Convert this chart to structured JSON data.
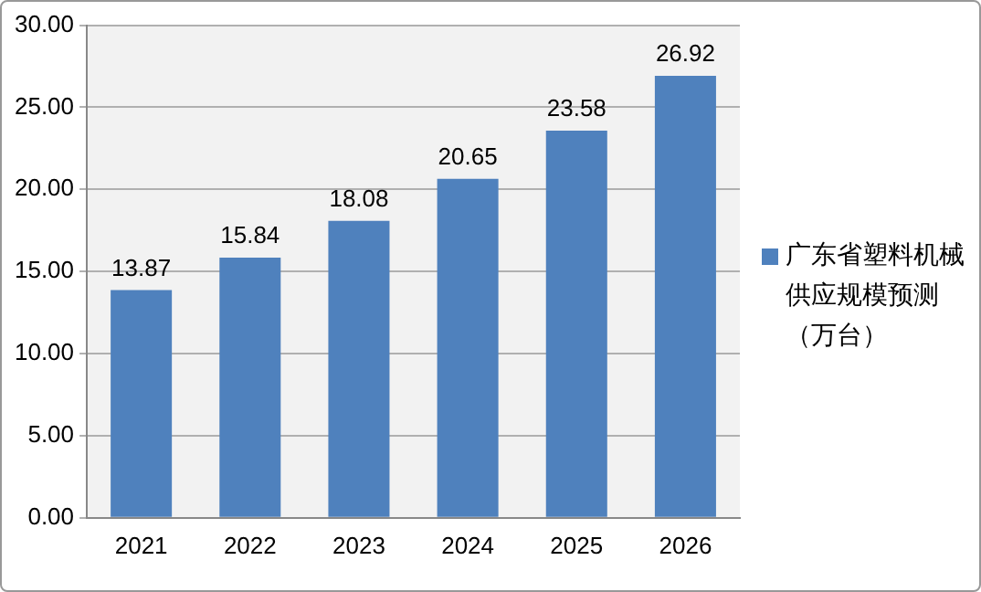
{
  "chart_data": {
    "type": "bar",
    "categories": [
      "2021",
      "2022",
      "2023",
      "2024",
      "2025",
      "2026"
    ],
    "series": [
      {
        "name": "广东省塑料机械供应规模预测（万台）",
        "color": "#4f81bd",
        "values": [
          13.87,
          15.84,
          18.08,
          20.65,
          23.58,
          26.92
        ]
      }
    ],
    "ylim": [
      0,
      30
    ],
    "yticks": [
      {
        "value": 0,
        "label": "0.00"
      },
      {
        "value": 5,
        "label": "5.00"
      },
      {
        "value": 10,
        "label": "10.00"
      },
      {
        "value": 15,
        "label": "15.00"
      },
      {
        "value": 20,
        "label": "20.00"
      },
      {
        "value": 25,
        "label": "25.00"
      },
      {
        "value": 30,
        "label": "30.00"
      }
    ],
    "grid": "y",
    "legend": "right",
    "data_labels": true
  }
}
